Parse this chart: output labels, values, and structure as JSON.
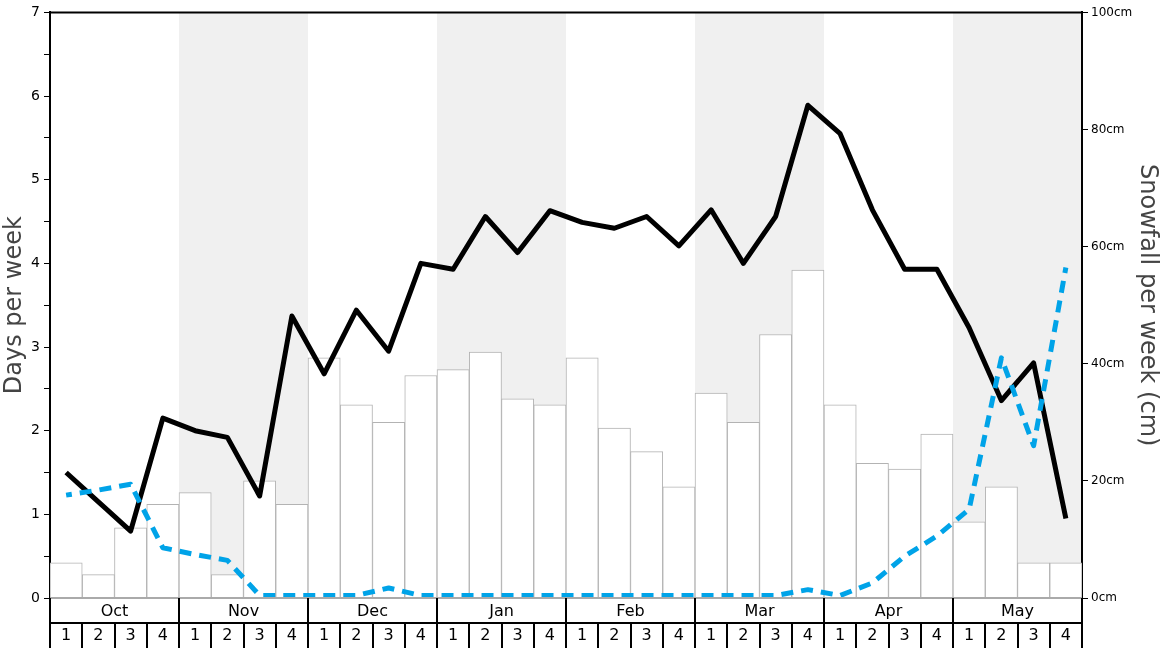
{
  "chart_data": {
    "type": "bar",
    "ylabel": "Days per week",
    "y2label": "Snowfall per week (cm)",
    "categories": [
      "1",
      "2",
      "3",
      "4",
      "1",
      "2",
      "3",
      "4",
      "1",
      "2",
      "3",
      "4",
      "1",
      "2",
      "3",
      "4",
      "1",
      "2",
      "3",
      "4",
      "1",
      "2",
      "3",
      "4",
      "1",
      "2",
      "3",
      "4",
      "1",
      "2",
      "3",
      "4"
    ],
    "annotations": [
      "Oct",
      "Nov",
      "Dec",
      "Jan",
      "Feb",
      "Mar",
      "Apr",
      "May"
    ],
    "ylim": [
      0,
      7
    ],
    "yticks": [
      0,
      {
        "value": 0.5,
        "label": null
      },
      1,
      {
        "value": 1.5,
        "label": null
      },
      2,
      {
        "value": 2.5,
        "label": null
      },
      3,
      {
        "value": 3.5,
        "label": null
      },
      4,
      {
        "value": 4.5,
        "label": null
      },
      5,
      {
        "value": 5.5,
        "label": null
      },
      6,
      {
        "value": 6.5,
        "label": null
      },
      7
    ],
    "y2lim": [
      0,
      100
    ],
    "y2ticks": [
      {
        "value": 0,
        "label": "0cm"
      },
      {
        "value": 20,
        "label": "20cm"
      },
      {
        "value": 40,
        "label": "40cm"
      },
      {
        "value": 60,
        "label": "60cm"
      },
      {
        "value": 80,
        "label": "80cm"
      },
      {
        "value": 100,
        "label": "100cm"
      }
    ],
    "series": [
      {
        "axis": "y2",
        "color": "#ffffff",
        "values": [
          6,
          4,
          12,
          16,
          18,
          4,
          20,
          16,
          41,
          33,
          30,
          38,
          39,
          42,
          34,
          33,
          41,
          29,
          25,
          19,
          35,
          30,
          45,
          56,
          33,
          23,
          22,
          28,
          13,
          19,
          6,
          6
        ]
      },
      {
        "type": "line",
        "axis": "y",
        "color": "#000000",
        "values": [
          1.5,
          1.15,
          0.8,
          2.15,
          2.0,
          1.92,
          1.22,
          3.37,
          2.68,
          3.44,
          2.95,
          4.0,
          3.93,
          4.56,
          4.13,
          4.63,
          4.49,
          4.42,
          4.56,
          4.21,
          4.64,
          4.0,
          4.56,
          5.89,
          5.55,
          4.64,
          3.93,
          3.93,
          3.23,
          2.36,
          2.81,
          0.95
        ]
      },
      {
        "type": "line",
        "axis": "y",
        "color": "#00a3e8",
        "line_style": "dashed",
        "values": [
          1.23,
          1.29,
          1.36,
          0.6,
          0.52,
          0.45,
          0.03,
          0.03,
          0.03,
          0.03,
          0.12,
          0.03,
          0.03,
          0.03,
          0.03,
          0.03,
          0.03,
          0.03,
          0.03,
          0.03,
          0.03,
          0.03,
          0.03,
          0.1,
          0.03,
          0.18,
          0.5,
          0.74,
          1.06,
          2.87,
          1.82,
          3.95
        ]
      }
    ],
    "marker": "none",
    "grid": false,
    "legend": false
  }
}
